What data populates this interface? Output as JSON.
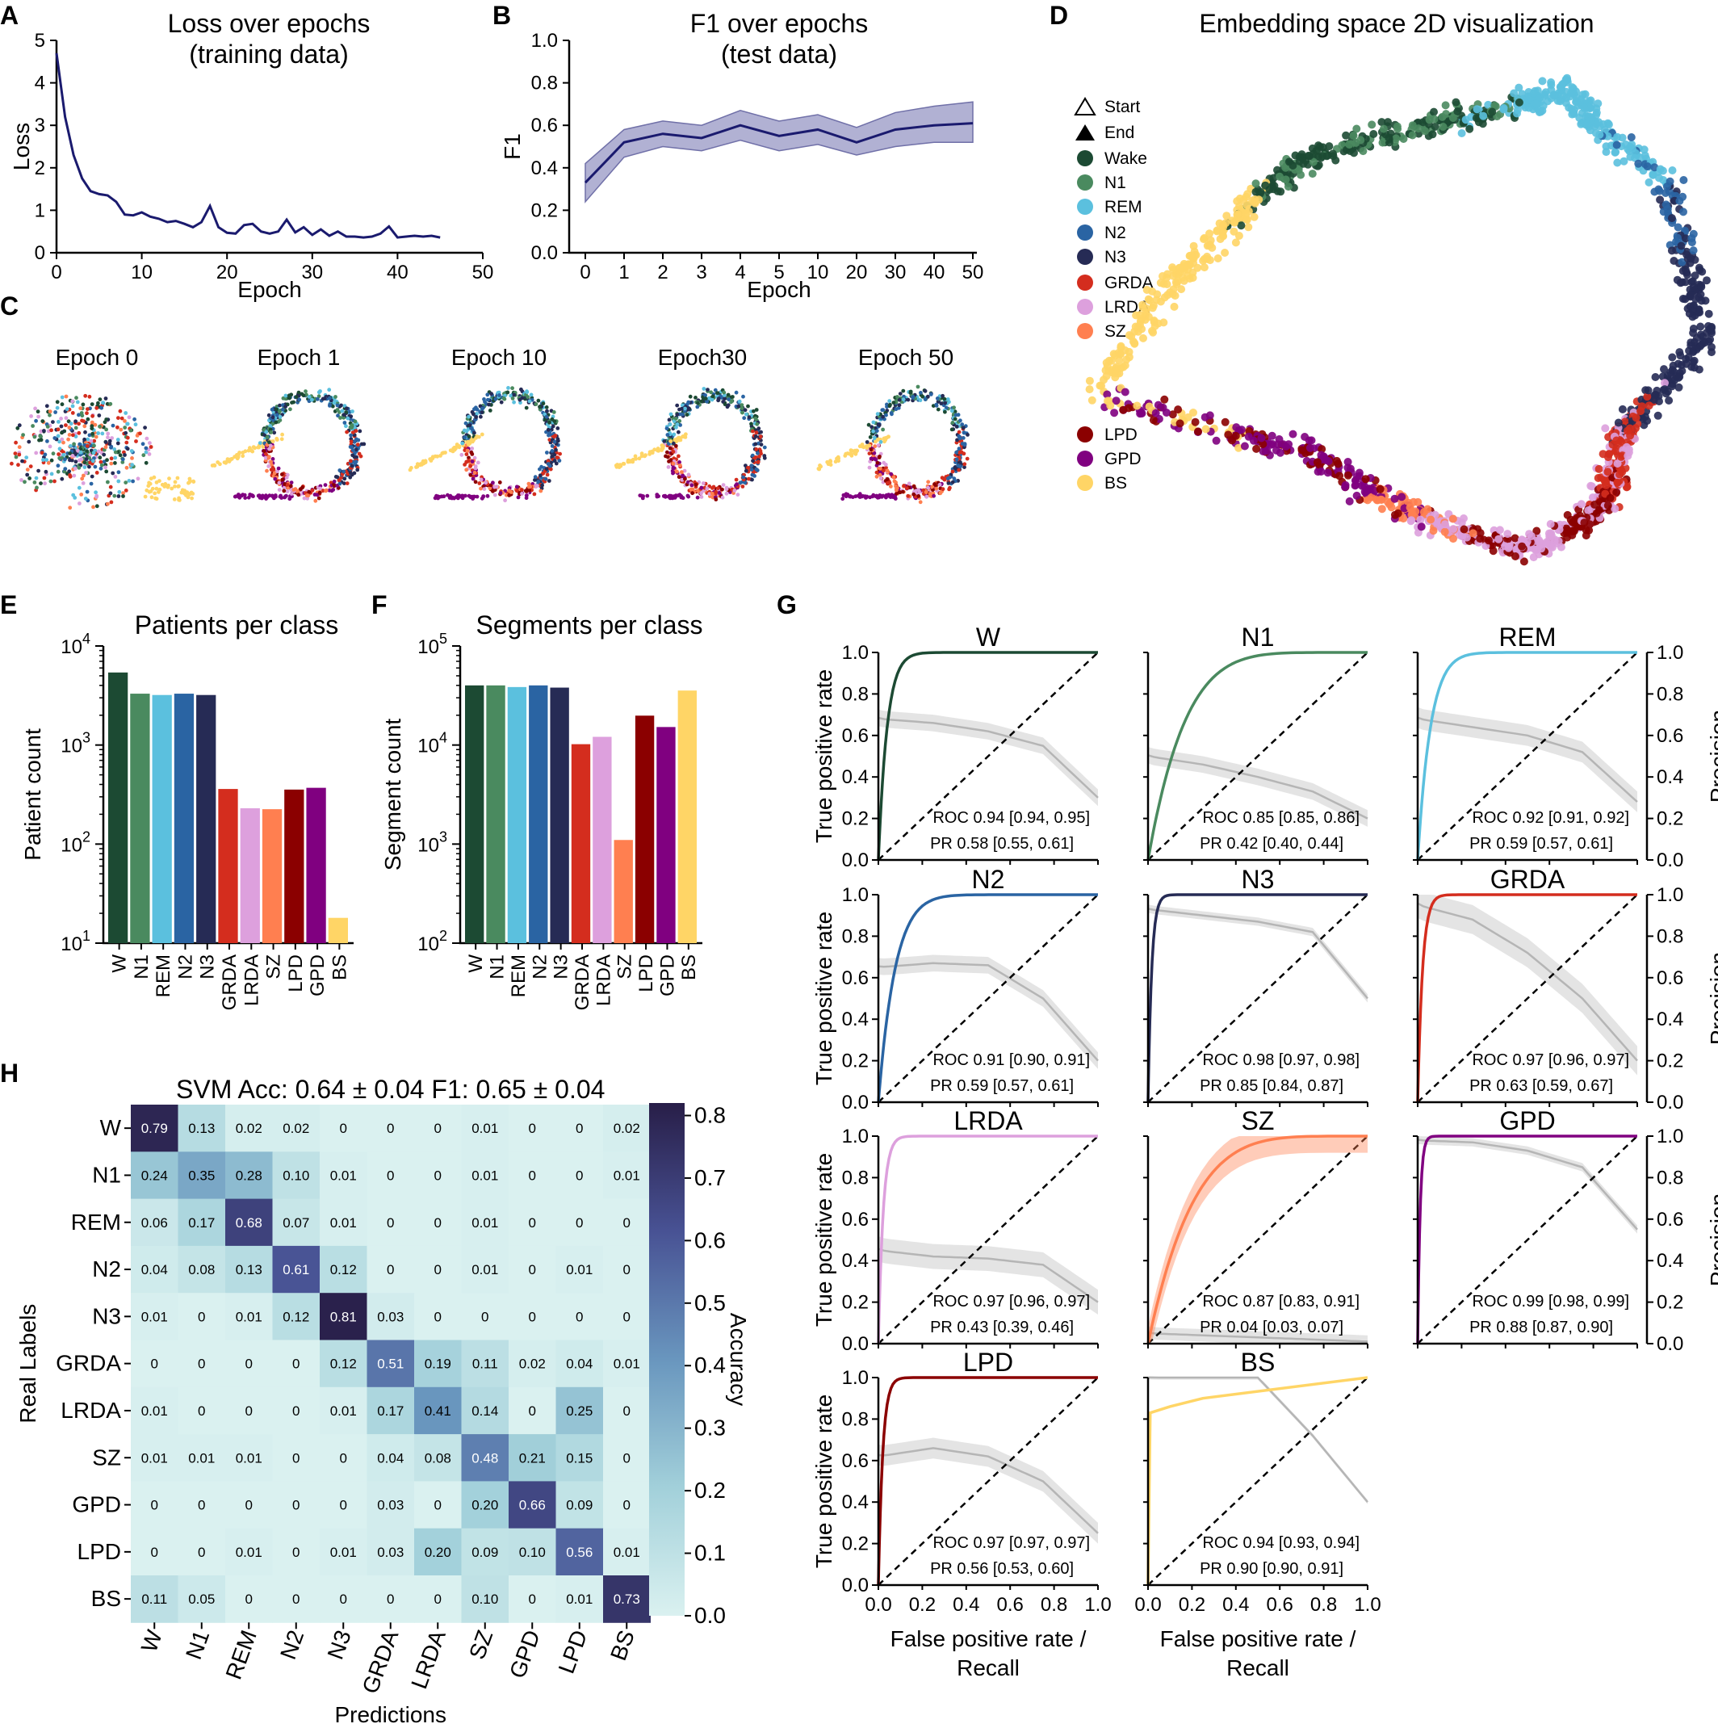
{
  "panels": {
    "A": "A",
    "B": "B",
    "C": "C",
    "D": "D",
    "E": "E",
    "F": "F",
    "G": "G",
    "H": "H"
  },
  "colors": {
    "W": "#1c4a33",
    "N1": "#4a8a5f",
    "REM": "#5bc0de",
    "N2": "#2a64a3",
    "N3": "#262b55",
    "GRDA": "#d42d1e",
    "LRDA": "#dda0dd",
    "SZ": "#ff7f50",
    "LPD": "#8b0000",
    "GPD": "#800080",
    "BS": "#ffd566"
  },
  "chart_data": [
    {
      "id": "A",
      "type": "line",
      "title": "Loss over epochs",
      "subtitle": "(training data)",
      "xlabel": "Epoch",
      "ylabel": "Loss",
      "xlim": [
        0,
        50
      ],
      "ylim": [
        0,
        5
      ],
      "xticks": [
        "0",
        "10",
        "20",
        "30",
        "40",
        "50"
      ],
      "yticks": [
        "0",
        "1",
        "2",
        "3",
        "4",
        "5"
      ],
      "x": [
        0,
        1,
        2,
        3,
        4,
        5,
        6,
        7,
        8,
        9,
        10,
        11,
        12,
        13,
        14,
        15,
        16,
        17,
        18,
        19,
        20,
        21,
        22,
        23,
        24,
        25,
        26,
        27,
        28,
        29,
        30,
        31,
        32,
        33,
        34,
        35,
        36,
        37,
        38,
        39,
        40,
        41,
        42,
        43,
        44,
        45
      ],
      "y": [
        4.7,
        3.2,
        2.3,
        1.75,
        1.45,
        1.38,
        1.35,
        1.2,
        0.9,
        0.88,
        0.95,
        0.85,
        0.8,
        0.72,
        0.75,
        0.68,
        0.6,
        0.72,
        1.1,
        0.6,
        0.47,
        0.45,
        0.65,
        0.68,
        0.5,
        0.45,
        0.5,
        0.78,
        0.48,
        0.6,
        0.42,
        0.55,
        0.4,
        0.5,
        0.38,
        0.38,
        0.36,
        0.38,
        0.45,
        0.62,
        0.36,
        0.38,
        0.4,
        0.38,
        0.4,
        0.36
      ]
    },
    {
      "id": "B",
      "type": "line",
      "title": "F1 over epochs",
      "subtitle": "(test data)",
      "xlabel": "Epoch",
      "ylabel": "F1",
      "ylim": [
        0,
        1
      ],
      "categories": [
        "0",
        "1",
        "2",
        "3",
        "4",
        "5",
        "10",
        "20",
        "30",
        "40",
        "50"
      ],
      "yticks": [
        "0.0",
        "0.2",
        "0.4",
        "0.6",
        "0.8",
        "1.0"
      ],
      "values": [
        0.33,
        0.52,
        0.56,
        0.54,
        0.6,
        0.55,
        0.58,
        0.52,
        0.58,
        0.6,
        0.61
      ],
      "lower": [
        0.24,
        0.45,
        0.5,
        0.48,
        0.53,
        0.48,
        0.51,
        0.46,
        0.5,
        0.52,
        0.52
      ],
      "upper": [
        0.42,
        0.58,
        0.62,
        0.6,
        0.67,
        0.62,
        0.65,
        0.59,
        0.66,
        0.69,
        0.71
      ]
    },
    {
      "id": "C",
      "type": "scatter",
      "labels": [
        "Epoch 0",
        "Epoch 1",
        "Epoch 10",
        "Epoch30",
        "Epoch 50"
      ]
    },
    {
      "id": "D",
      "type": "scatter",
      "title": "Embedding space 2D visualization",
      "legend": [
        {
          "label": "Start",
          "marker": "triangle-open"
        },
        {
          "label": "End",
          "marker": "triangle"
        },
        {
          "label": "Wake",
          "key": "W"
        },
        {
          "label": "N1",
          "key": "N1"
        },
        {
          "label": "REM",
          "key": "REM"
        },
        {
          "label": "N2",
          "key": "N2"
        },
        {
          "label": "N3",
          "key": "N3"
        },
        {
          "label": "GRDA",
          "key": "GRDA"
        },
        {
          "label": "LRDA",
          "key": "LRDA"
        },
        {
          "label": "SZ",
          "key": "SZ"
        },
        {
          "label": "LPD",
          "key": "LPD"
        },
        {
          "label": "GPD",
          "key": "GPD"
        },
        {
          "label": "BS",
          "key": "BS"
        }
      ]
    },
    {
      "id": "E",
      "type": "bar",
      "title": "Patients per class",
      "ylabel": "Patient count",
      "scale": "log",
      "ylim": [
        10,
        10000
      ],
      "yticks": [
        {
          "base": "10",
          "exp": "1"
        },
        {
          "base": "10",
          "exp": "2"
        },
        {
          "base": "10",
          "exp": "3"
        },
        {
          "base": "10",
          "exp": "4"
        }
      ],
      "categories": [
        "W",
        "N1",
        "REM",
        "N2",
        "N3",
        "GRDA",
        "LRDA",
        "SZ",
        "LPD",
        "GPD",
        "BS"
      ],
      "values": [
        5400,
        3300,
        3200,
        3300,
        3200,
        360,
        230,
        225,
        355,
        370,
        18
      ]
    },
    {
      "id": "F",
      "type": "bar",
      "title": "Segments per class",
      "ylabel": "Segment count",
      "scale": "log",
      "ylim": [
        100,
        100000
      ],
      "yticks": [
        {
          "base": "10",
          "exp": "2"
        },
        {
          "base": "10",
          "exp": "3"
        },
        {
          "base": "10",
          "exp": "4"
        },
        {
          "base": "10",
          "exp": "5"
        }
      ],
      "categories": [
        "W",
        "N1",
        "REM",
        "N2",
        "N3",
        "GRDA",
        "LRDA",
        "SZ",
        "LPD",
        "GPD",
        "BS"
      ],
      "values": [
        40000,
        40000,
        38500,
        40000,
        38000,
        10200,
        12100,
        1100,
        19800,
        15200,
        35500
      ]
    },
    {
      "id": "G",
      "type": "line",
      "xlabel1": "False positive rate /",
      "xlabel2": "Recall",
      "ylabel": "True positive rate",
      "ylabel2": "Precision",
      "ticks": [
        "0.0",
        "0.2",
        "0.4",
        "0.6",
        "0.8",
        "1.0"
      ],
      "panels": [
        {
          "name": "W",
          "key": "W",
          "roc": "ROC 0.94 [0.94, 0.95]",
          "pr": "PR 0.58 [0.55, 0.61]",
          "rk": 25,
          "p": [
            0.68,
            0.66,
            0.62,
            0.55,
            0.3
          ],
          "band": 0.04
        },
        {
          "name": "N1",
          "key": "N1",
          "roc": "ROC 0.85 [0.85, 0.86]",
          "pr": "PR 0.42 [0.40, 0.44]",
          "rk": 6,
          "p": [
            0.5,
            0.46,
            0.4,
            0.33,
            0.2
          ],
          "band": 0.04
        },
        {
          "name": "REM",
          "key": "REM",
          "roc": "ROC 0.92 [0.91, 0.92]",
          "pr": "PR 0.59 [0.57, 0.61]",
          "rk": 17,
          "p": [
            0.68,
            0.64,
            0.6,
            0.52,
            0.28
          ],
          "band": 0.05
        },
        {
          "name": "N2",
          "key": "N2",
          "roc": "ROC 0.91 [0.90, 0.91]",
          "pr": "PR 0.59 [0.57, 0.61]",
          "rk": 13,
          "p": [
            0.65,
            0.67,
            0.66,
            0.5,
            0.2
          ],
          "band": 0.04
        },
        {
          "name": "N3",
          "key": "N3",
          "roc": "ROC 0.98 [0.97, 0.98]",
          "pr": "PR 0.85 [0.84, 0.87]",
          "rk": 60,
          "p": [
            0.93,
            0.9,
            0.87,
            0.82,
            0.5
          ],
          "band": 0.02
        },
        {
          "name": "GRDA",
          "key": "GRDA",
          "roc": "ROC 0.97 [0.96, 0.97]",
          "pr": "PR 0.63 [0.59, 0.67]",
          "rk": 45,
          "p": [
            0.95,
            0.88,
            0.72,
            0.5,
            0.2
          ],
          "band": 0.07
        },
        {
          "name": "LRDA",
          "key": "LRDA",
          "roc": "ROC 0.97 [0.96, 0.97]",
          "pr": "PR 0.43 [0.39, 0.46]",
          "rk": 45,
          "p": [
            0.45,
            0.42,
            0.41,
            0.38,
            0.2
          ],
          "band": 0.06
        },
        {
          "name": "SZ",
          "key": "SZ",
          "roc": "ROC 0.87 [0.83, 0.91]",
          "pr": "PR 0.04 [0.03, 0.07]",
          "rk": 5,
          "p": [
            0.05,
            0.04,
            0.03,
            0.02,
            0.01
          ],
          "band": 0.03
        },
        {
          "name": "GPD",
          "key": "GPD",
          "roc": "ROC 0.99 [0.98, 0.99]",
          "pr": "PR 0.88 [0.87, 0.90]",
          "rk": 90,
          "p": [
            0.98,
            0.97,
            0.93,
            0.85,
            0.55
          ],
          "band": 0.02
        },
        {
          "name": "LPD",
          "key": "LPD",
          "roc": "ROC 0.97 [0.97, 0.97]",
          "pr": "PR 0.56 [0.53, 0.60]",
          "rk": 50,
          "p": [
            0.62,
            0.66,
            0.62,
            0.5,
            0.25
          ],
          "band": 0.05
        },
        {
          "name": "BS",
          "key": "BS",
          "roc": "ROC 0.94 [0.93, 0.94]",
          "pr": "PR 0.90 [0.90, 0.91]",
          "rk": 0,
          "p": [
            1,
            1,
            1,
            0.72,
            0.4
          ],
          "band": 0.01
        }
      ]
    },
    {
      "id": "H",
      "type": "heatmap",
      "title": "SVM Acc: 0.64 ± 0.04 F1: 0.65 ± 0.04",
      "xlabel": "Predictions",
      "ylabel": "Real Labels",
      "colorbar_label": "Accuracy",
      "colorbar_ticks": [
        "0.0",
        "0.1",
        "0.2",
        "0.3",
        "0.4",
        "0.5",
        "0.6",
        "0.7",
        "0.8"
      ],
      "vmin": 0,
      "vmax": 0.82,
      "rows": [
        "W",
        "N1",
        "REM",
        "N2",
        "N3",
        "GRDA",
        "LRDA",
        "SZ",
        "GPD",
        "LPD",
        "BS"
      ],
      "cols": [
        "W",
        "N1",
        "REM",
        "N2",
        "N3",
        "GRDA",
        "LRDA",
        "SZ",
        "GPD",
        "LPD",
        "BS"
      ],
      "matrix": [
        [
          "0.79",
          "0.13",
          "0.02",
          "0.02",
          "0",
          "0",
          "0",
          "0.01",
          "0",
          "0",
          "0.02"
        ],
        [
          "0.24",
          "0.35",
          "0.28",
          "0.10",
          "0.01",
          "0",
          "0",
          "0.01",
          "0",
          "0",
          "0.01"
        ],
        [
          "0.06",
          "0.17",
          "0.68",
          "0.07",
          "0.01",
          "0",
          "0",
          "0.01",
          "0",
          "0",
          "0"
        ],
        [
          "0.04",
          "0.08",
          "0.13",
          "0.61",
          "0.12",
          "0",
          "0",
          "0.01",
          "0",
          "0.01",
          "0"
        ],
        [
          "0.01",
          "0",
          "0.01",
          "0.12",
          "0.81",
          "0.03",
          "0",
          "0",
          "0",
          "0",
          "0"
        ],
        [
          "0",
          "0",
          "0",
          "0",
          "0.12",
          "0.51",
          "0.19",
          "0.11",
          "0.02",
          "0.04",
          "0.01"
        ],
        [
          "0.01",
          "0",
          "0",
          "0",
          "0.01",
          "0.17",
          "0.41",
          "0.14",
          "0",
          "0.25",
          "0"
        ],
        [
          "0.01",
          "0.01",
          "0.01",
          "0",
          "0",
          "0.04",
          "0.08",
          "0.48",
          "0.21",
          "0.15",
          "0"
        ],
        [
          "0",
          "0",
          "0",
          "0",
          "0",
          "0.03",
          "0",
          "0.20",
          "0.66",
          "0.09",
          "0"
        ],
        [
          "0",
          "0",
          "0.01",
          "0",
          "0.01",
          "0.03",
          "0.20",
          "0.09",
          "0.10",
          "0.56",
          "0.01"
        ],
        [
          "0.11",
          "0.05",
          "0",
          "0",
          "0",
          "0",
          "0",
          "0.10",
          "0",
          "0.01",
          "0.73"
        ]
      ]
    }
  ]
}
